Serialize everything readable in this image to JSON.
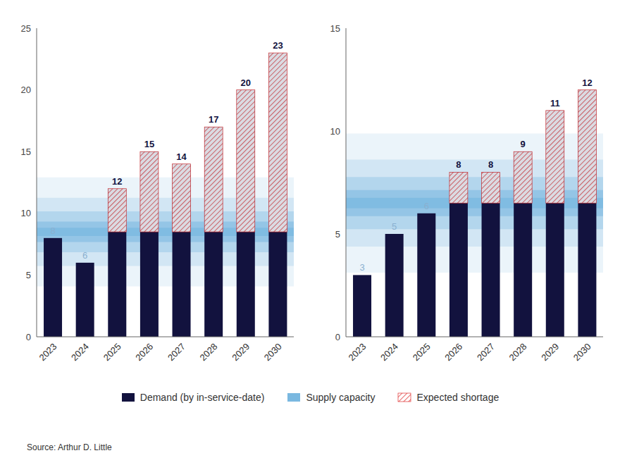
{
  "chart_data": [
    {
      "type": "bar",
      "categories": [
        "2023",
        "2024",
        "2025",
        "2026",
        "2027",
        "2028",
        "2029",
        "2030"
      ],
      "series": [
        {
          "name": "Demand (by in-service-date)",
          "color": "#12123e",
          "values": [
            8,
            6,
            12,
            15,
            14,
            17,
            20,
            23
          ]
        }
      ],
      "supply_capacity": {
        "name": "Supply capacity",
        "value": 8.5,
        "color": "#7ab8e0"
      },
      "shortage": {
        "name": "Expected shortage",
        "color": "#e03030"
      },
      "ylim": [
        0,
        25
      ],
      "yticks": [
        0,
        5,
        10,
        15,
        20,
        25
      ],
      "data_labels": true,
      "grid": false,
      "legend": "bottom"
    },
    {
      "type": "bar",
      "categories": [
        "2023",
        "2024",
        "2025",
        "2026",
        "2027",
        "2028",
        "2029",
        "2030"
      ],
      "series": [
        {
          "name": "Demand (by in-service-date)",
          "color": "#12123e",
          "values": [
            3,
            5,
            6,
            8,
            8,
            9,
            11,
            12
          ]
        }
      ],
      "supply_capacity": {
        "name": "Supply capacity",
        "value": 6.5,
        "color": "#7ab8e0"
      },
      "shortage": {
        "name": "Expected shortage",
        "color": "#e03030"
      },
      "ylim": [
        0,
        15
      ],
      "yticks": [
        0,
        5,
        10,
        15
      ],
      "data_labels": true,
      "grid": false,
      "legend": "bottom"
    }
  ],
  "source": "Source: Arthur D. Little"
}
